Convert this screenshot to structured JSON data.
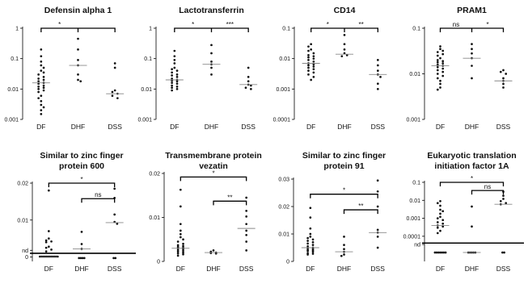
{
  "chart_data": [
    {
      "type": "scatter",
      "title": [
        "Defensin alpha 1"
      ],
      "scale": "log",
      "ylim": [
        0.001,
        1
      ],
      "yticks": [
        {
          "v": 1,
          "l": "1"
        },
        {
          "v": 0.1,
          "l": "0.1"
        },
        {
          "v": 0.01,
          "l": "0.01"
        },
        {
          "v": 0.001,
          "l": "0.001"
        }
      ],
      "categories": [
        "DF",
        "DHF",
        "DSS"
      ],
      "medians": [
        0.016,
        0.06,
        0.007
      ],
      "points": [
        [
          0.2,
          0.12,
          0.08,
          0.06,
          0.05,
          0.04,
          0.035,
          0.03,
          0.025,
          0.022,
          0.02,
          0.018,
          0.016,
          0.015,
          0.013,
          0.012,
          0.011,
          0.01,
          0.009,
          0.008,
          0.006,
          0.005,
          0.004,
          0.003,
          0.0025,
          0.002,
          0.0015
        ],
        [
          0.45,
          0.2,
          0.09,
          0.06,
          0.03,
          0.02,
          0.018
        ],
        [
          0.07,
          0.05,
          0.009,
          0.008,
          0.007,
          0.006,
          0.005
        ]
      ],
      "brackets": [
        {
          "from": 0,
          "to": 2,
          "y": 1.0,
          "label": "*",
          "mid": 1
        }
      ]
    },
    {
      "type": "scatter",
      "title": [
        "Lactotransferrin"
      ],
      "scale": "log",
      "ylim": [
        0.001,
        1
      ],
      "yticks": [
        {
          "v": 1,
          "l": "1"
        },
        {
          "v": 0.1,
          "l": "0.1"
        },
        {
          "v": 0.01,
          "l": "0.01"
        },
        {
          "v": 0.001,
          "l": "0.001"
        }
      ],
      "categories": [
        "DF",
        "DHF",
        "DSS"
      ],
      "medians": [
        0.02,
        0.065,
        0.014
      ],
      "points": [
        [
          0.18,
          0.12,
          0.09,
          0.07,
          0.05,
          0.045,
          0.04,
          0.035,
          0.03,
          0.028,
          0.025,
          0.022,
          0.02,
          0.019,
          0.018,
          0.016,
          0.015,
          0.013,
          0.012,
          0.011,
          0.01,
          0.009
        ],
        [
          0.28,
          0.15,
          0.08,
          0.065,
          0.05,
          0.03
        ],
        [
          0.05,
          0.025,
          0.018,
          0.014,
          0.013,
          0.011,
          0.01
        ]
      ],
      "brackets": [
        {
          "from": 0,
          "to": 2,
          "y": 1.0,
          "label": "*",
          "mid": 1
        }
      ],
      "extra_labels": [
        {
          "text": "***",
          "x_between": [
            1,
            2
          ],
          "y": 1.0
        }
      ]
    },
    {
      "type": "scatter",
      "title": [
        "CD14"
      ],
      "scale": "log",
      "ylim": [
        0.0001,
        0.1
      ],
      "yticks": [
        {
          "v": 0.1,
          "l": "0.1"
        },
        {
          "v": 0.01,
          "l": "0.01"
        },
        {
          "v": 0.001,
          "l": "0.001"
        },
        {
          "v": 0.0001,
          "l": "0.0001"
        }
      ],
      "categories": [
        "DF",
        "DHF",
        "DSS"
      ],
      "medians": [
        0.007,
        0.014,
        0.003
      ],
      "points": [
        [
          0.03,
          0.025,
          0.02,
          0.018,
          0.015,
          0.013,
          0.012,
          0.011,
          0.01,
          0.009,
          0.008,
          0.007,
          0.0065,
          0.006,
          0.0055,
          0.005,
          0.0045,
          0.004,
          0.0035,
          0.003,
          0.0025,
          0.002
        ],
        [
          0.06,
          0.03,
          0.02,
          0.015,
          0.013,
          0.012
        ],
        [
          0.009,
          0.006,
          0.004,
          0.003,
          0.0025,
          0.0015,
          0.001
        ]
      ],
      "brackets": [
        {
          "from": 0,
          "to": 2,
          "y": 0.1,
          "label": "*",
          "mid": 1
        }
      ],
      "extra_labels": [
        {
          "text": "**",
          "x_between": [
            1,
            2
          ],
          "y": 0.1
        }
      ]
    },
    {
      "type": "scatter",
      "title": [
        "PRAM1"
      ],
      "scale": "log",
      "ylim": [
        0.001,
        0.1
      ],
      "yticks": [
        {
          "v": 0.1,
          "l": "0.1"
        },
        {
          "v": 0.01,
          "l": "0.01"
        },
        {
          "v": 0.001,
          "l": "0.001"
        }
      ],
      "categories": [
        "DF",
        "DHF",
        "DSS"
      ],
      "medians": [
        0.015,
        0.022,
        0.007
      ],
      "points": [
        [
          0.04,
          0.035,
          0.032,
          0.03,
          0.027,
          0.025,
          0.022,
          0.02,
          0.019,
          0.018,
          0.017,
          0.016,
          0.015,
          0.014,
          0.013,
          0.012,
          0.011,
          0.01,
          0.009,
          0.008,
          0.007,
          0.006,
          0.005,
          0.0045
        ],
        [
          0.045,
          0.035,
          0.028,
          0.022,
          0.015,
          0.008
        ],
        [
          0.012,
          0.011,
          0.01,
          0.008,
          0.007,
          0.006,
          0.005
        ]
      ],
      "brackets": [
        {
          "from": 0,
          "to": 2,
          "y": 0.1,
          "label": "ns",
          "mid": 1
        }
      ],
      "extra_labels": [
        {
          "text": "*",
          "x_between": [
            1,
            2
          ],
          "y": 0.1
        }
      ]
    },
    {
      "type": "scatter",
      "title": [
        "Similar to zinc finger",
        "protein 600"
      ],
      "scale": "linear",
      "ylim": [
        -0.0012,
        0.02
      ],
      "yticks": [
        {
          "v": 0.02,
          "l": "0.02"
        },
        {
          "v": 0.01,
          "l": "0.01"
        },
        {
          "v": 0.0018,
          "l": "nd"
        },
        {
          "v": 0,
          "l": "0"
        }
      ],
      "nd_line": 0.001,
      "categories": [
        "DF",
        "DHF",
        "DSS"
      ],
      "medians": [
        -0.0001,
        0.0022,
        0.0093
      ],
      "points": [
        [
          0.018,
          0.007,
          0.005,
          0.0045,
          0.0042,
          0.004,
          0.0028,
          0.0025,
          0.002,
          0.0015
        ],
        [
          0.0068,
          0.0035,
          0.0022
        ],
        [
          0.0185,
          0.016,
          0.0115,
          0.0095,
          0.009
        ]
      ],
      "nd_points": [
        {
          "cat": 0,
          "n": 12,
          "v": 0.0001
        },
        {
          "cat": 1,
          "n": 4,
          "v": -0.0003
        },
        {
          "cat": 2,
          "n": 2,
          "v": -0.0003
        }
      ],
      "brackets": [
        {
          "from": 0,
          "to": 2,
          "y": 0.02,
          "label": "*"
        },
        {
          "from": 1,
          "to": 2,
          "y": 0.0158,
          "label": "ns"
        }
      ]
    },
    {
      "type": "scatter",
      "title": [
        "Transmembrane protein",
        "vezatin"
      ],
      "scale": "linear",
      "ylim": [
        0,
        0.02
      ],
      "yticks": [
        {
          "v": 0.02,
          "l": "0.02"
        },
        {
          "v": 0.01,
          "l": "0.01"
        },
        {
          "v": 0,
          "l": "0"
        }
      ],
      "categories": [
        "DF",
        "DHF",
        "DSS"
      ],
      "medians": [
        0.003,
        0.002,
        0.0075
      ],
      "points": [
        [
          0.0163,
          0.0125,
          0.0085,
          0.007,
          0.0062,
          0.0055,
          0.005,
          0.0045,
          0.004,
          0.0037,
          0.0035,
          0.0033,
          0.0031,
          0.003,
          0.0028,
          0.0026,
          0.0024,
          0.0022,
          0.002,
          0.0018,
          0.0016,
          0.0013
        ],
        [
          0.0025,
          0.0022,
          0.002,
          0.0019,
          0.0018
        ],
        [
          0.0145,
          0.0115,
          0.0102,
          0.0085,
          0.007,
          0.006,
          0.0045,
          0.0025
        ]
      ],
      "brackets": [
        {
          "from": 0,
          "to": 2,
          "y": 0.0192,
          "label": "*"
        },
        {
          "from": 1,
          "to": 2,
          "y": 0.0137,
          "label": "**"
        }
      ]
    },
    {
      "type": "scatter",
      "title": [
        "Similar to zinc finger",
        "protein 91"
      ],
      "scale": "linear",
      "ylim": [
        0,
        0.03
      ],
      "yticks": [
        {
          "v": 0.03,
          "l": "0.03"
        },
        {
          "v": 0.02,
          "l": "0.02"
        },
        {
          "v": 0.01,
          "l": "0.01"
        },
        {
          "v": 0,
          "l": "0"
        }
      ],
      "categories": [
        "DF",
        "DHF",
        "DSS"
      ],
      "medians": [
        0.005,
        0.0035,
        0.0105
      ],
      "points": [
        [
          0.0195,
          0.016,
          0.012,
          0.01,
          0.009,
          0.0085,
          0.008,
          0.0075,
          0.007,
          0.0065,
          0.006,
          0.0055,
          0.005,
          0.0048,
          0.0045,
          0.0042,
          0.004,
          0.0038,
          0.0035,
          0.003,
          0.0028,
          0.0025
        ],
        [
          0.009,
          0.006,
          0.0045,
          0.0035,
          0.0025,
          0.002
        ],
        [
          0.0295,
          0.0255,
          0.02,
          0.0115,
          0.0105,
          0.009,
          0.005
        ]
      ],
      "brackets": [
        {
          "from": 0,
          "to": 2,
          "y": 0.0245,
          "label": "*"
        },
        {
          "from": 1,
          "to": 2,
          "y": 0.0188,
          "label": "**"
        }
      ]
    },
    {
      "type": "scatter",
      "title": [
        "Eukaryotic translation",
        "initiation factor 1A"
      ],
      "scale": "log",
      "ylim": [
        4e-06,
        0.1
      ],
      "yticks": [
        {
          "v": 0.1,
          "l": "0.1"
        },
        {
          "v": 0.01,
          "l": "0.01"
        },
        {
          "v": 0.001,
          "l": "0.001"
        },
        {
          "v": 0.0001,
          "l": "0.0001"
        },
        {
          "v": 3.5e-05,
          "l": "nd"
        }
      ],
      "nd_line": 4.2e-05,
      "categories": [
        "DF",
        "DHF",
        "DSS"
      ],
      "medians": [
        0.0004,
        1.25e-05,
        0.006
      ],
      "points": [
        [
          0.009,
          0.007,
          0.005,
          0.003,
          0.0025,
          0.0018,
          0.0012,
          0.001,
          0.0008,
          0.0006,
          0.0005,
          0.0004,
          0.00035,
          0.0003,
          0.0002,
          0.00015
        ],
        [
          0.0045,
          0.00035
        ],
        [
          0.03,
          0.018,
          0.012,
          0.009,
          0.007,
          0.006
        ]
      ],
      "nd_points": [
        {
          "cat": 0,
          "n": 7,
          "v": 1.25e-05
        },
        {
          "cat": 1,
          "n": 5,
          "v": 1.25e-05
        },
        {
          "cat": 2,
          "n": 2,
          "v": 1.25e-05
        }
      ],
      "brackets": [
        {
          "from": 0,
          "to": 2,
          "y": 0.1,
          "label": "*"
        },
        {
          "from": 1,
          "to": 2,
          "y": 0.035,
          "label": "ns"
        }
      ]
    }
  ]
}
